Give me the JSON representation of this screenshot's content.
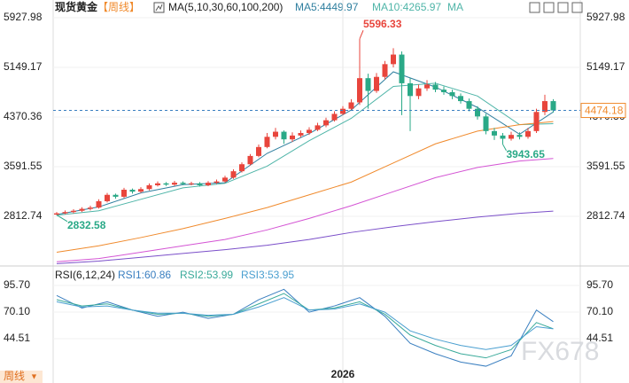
{
  "chart_data": {
    "type": "candlestick",
    "title": "现货黄金",
    "period": "【周线】",
    "indicator_title": "MA(5,10,30,60,100,200)",
    "ma_more": "MA",
    "ylim": [
      2062,
      6067
    ],
    "yticks": [
      5927.98,
      5149.17,
      4370.36,
      3591.55,
      2812.74
    ],
    "up_color": "#e8453c",
    "down_color": "#2aa987",
    "last_price": 4474.18,
    "last_price_color": "#f08a2c",
    "xticks": [
      {
        "value": 34,
        "label": "2026"
      }
    ],
    "annotations": [
      {
        "text": "5596.33",
        "index": 36,
        "value": 5596.33,
        "color": "#e8453c"
      },
      {
        "text": "3943.65",
        "index": 53,
        "value": 3943.65,
        "color": "#2aa987"
      },
      {
        "text": "2832.58",
        "index": 0,
        "value": 2832.58,
        "color": "#2aa987"
      }
    ],
    "open": [
      2840,
      2860,
      2880,
      2900,
      2930,
      2950,
      3050,
      3150,
      3120,
      3230,
      3200,
      3240,
      3300,
      3330,
      3310,
      3340,
      3320,
      3330,
      3300,
      3340,
      3360,
      3420,
      3520,
      3630,
      3760,
      3900,
      4060,
      4140,
      4020,
      4080,
      4120,
      4170,
      4240,
      4320,
      4420,
      4500,
      4600,
      4980,
      4780,
      5000,
      5200,
      5350,
      4900,
      4700,
      4820,
      4880,
      4800,
      4760,
      4700,
      4620,
      4500,
      4380,
      4150,
      4080,
      4030,
      4090,
      4060,
      4150,
      4450,
      4620
    ],
    "high": [
      2880,
      2905,
      2925,
      2955,
      2980,
      3080,
      3180,
      3170,
      3260,
      3250,
      3270,
      3330,
      3360,
      3350,
      3370,
      3360,
      3355,
      3350,
      3365,
      3390,
      3450,
      3550,
      3660,
      3790,
      3940,
      4120,
      4200,
      4160,
      4130,
      4160,
      4210,
      4280,
      4360,
      4460,
      4540,
      4650,
      5596.33,
      5050,
      5060,
      5250,
      5450,
      5400,
      4980,
      4880,
      4950,
      4920,
      4850,
      4800,
      4740,
      4660,
      4540,
      4420,
      4200,
      4120,
      4140,
      4130,
      4200,
      4500,
      4720,
      4650
    ],
    "low": [
      2832.58,
      2845,
      2860,
      2880,
      2905,
      2935,
      3030,
      3090,
      3100,
      3170,
      3180,
      3220,
      3280,
      3290,
      3290,
      3300,
      3300,
      3280,
      3285,
      3320,
      3340,
      3400,
      3500,
      3610,
      3740,
      3880,
      4020,
      3950,
      3980,
      4050,
      4090,
      4150,
      4210,
      4300,
      4400,
      4480,
      4560,
      4500,
      4750,
      4960,
      5150,
      4400,
      4150,
      4650,
      4780,
      4760,
      4720,
      4650,
      4580,
      4460,
      4330,
      4100,
      4010,
      3943.65,
      4000,
      4020,
      4030,
      4120,
      4400,
      4440
    ],
    "close": [
      2860,
      2880,
      2900,
      2930,
      2950,
      3050,
      3150,
      3120,
      3230,
      3200,
      3240,
      3300,
      3330,
      3310,
      3340,
      3320,
      3330,
      3300,
      3340,
      3360,
      3420,
      3520,
      3630,
      3760,
      3900,
      4060,
      4140,
      4020,
      4080,
      4120,
      4170,
      4240,
      4320,
      4420,
      4500,
      4600,
      4980,
      4780,
      5000,
      5200,
      5350,
      4900,
      4700,
      4820,
      4880,
      4800,
      4760,
      4700,
      4620,
      4500,
      4380,
      4150,
      4080,
      4030,
      4090,
      4060,
      4150,
      4450,
      4620,
      4474.18
    ],
    "ma_x": [
      0,
      5,
      10,
      15,
      20,
      25,
      30,
      35,
      40,
      45,
      50,
      55,
      59
    ],
    "series": [
      {
        "name": "MA5:4449.97",
        "color": "#2f7f9f",
        "values": [
          2840,
          2960,
          3180,
          3310,
          3340,
          3800,
          4110,
          4480,
          5080,
          4840,
          4520,
          4100,
          4449.97
        ]
      },
      {
        "name": "MA10:4265.97",
        "color": "#4fb5a8",
        "values": [
          2830,
          2900,
          3080,
          3260,
          3330,
          3600,
          4000,
          4350,
          4850,
          4900,
          4700,
          4250,
          4265.97
        ]
      },
      {
        "color": "#f08a2c",
        "values": [
          2250,
          2350,
          2480,
          2620,
          2780,
          2950,
          3150,
          3350,
          3650,
          3950,
          4150,
          4250,
          4300
        ]
      },
      {
        "color": "#d454d4",
        "values": [
          2100,
          2150,
          2250,
          2350,
          2450,
          2600,
          2780,
          2980,
          3200,
          3420,
          3580,
          3680,
          3720
        ]
      },
      {
        "color": "#7b4fc9",
        "values": [
          2070,
          2110,
          2170,
          2230,
          2290,
          2360,
          2450,
          2560,
          2650,
          2730,
          2800,
          2860,
          2895
        ]
      }
    ],
    "rsi": {
      "title": "RSI(6,12,24)",
      "ylim": [
        7.8,
        110.2
      ],
      "yticks": [
        95.7,
        70.1,
        44.51
      ],
      "x": [
        0,
        3,
        6,
        9,
        12,
        15,
        18,
        21,
        24,
        27,
        30,
        33,
        36,
        39,
        42,
        45,
        48,
        51,
        54,
        57,
        59
      ],
      "series": [
        {
          "name": "RSI1:60.86",
          "color": "#3a7fc0",
          "values": [
            86,
            74,
            80,
            72,
            66,
            70,
            64,
            68,
            82,
            92,
            70,
            76,
            84,
            66,
            40,
            30,
            22,
            18,
            28,
            72,
            60.86
          ]
        },
        {
          "name": "RSI2:53.99",
          "color": "#3aaa9a",
          "values": [
            82,
            76,
            78,
            72,
            68,
            69,
            66,
            68,
            78,
            88,
            72,
            74,
            80,
            68,
            48,
            38,
            30,
            26,
            34,
            60,
            53.99
          ]
        },
        {
          "name": "RSI3:53.95",
          "color": "#4a9fd0",
          "values": [
            80,
            75,
            76,
            72,
            69,
            69,
            67,
            68,
            75,
            84,
            72,
            73,
            78,
            70,
            52,
            44,
            38,
            34,
            38,
            56,
            53.95
          ]
        }
      ]
    },
    "period_tab": "周线",
    "watermark": "FX678"
  }
}
